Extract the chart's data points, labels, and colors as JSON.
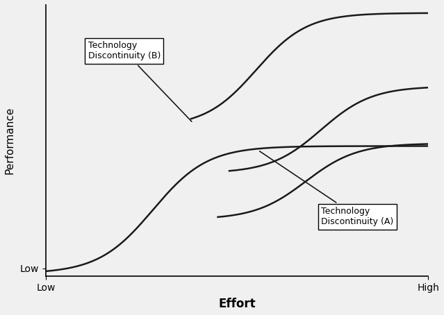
{
  "title": "",
  "xlabel": "Effort",
  "ylabel": "Performance",
  "background_color": "#f0f0f0",
  "line_color": "#1a1a1a",
  "line_width": 1.8,
  "annotation_B": "Technology\nDiscontinuity (B)",
  "annotation_A": "Technology\nDiscontinuity (A)",
  "annotation_fontsize": 9,
  "xlabel_fontsize": 12,
  "ylabel_fontsize": 11
}
